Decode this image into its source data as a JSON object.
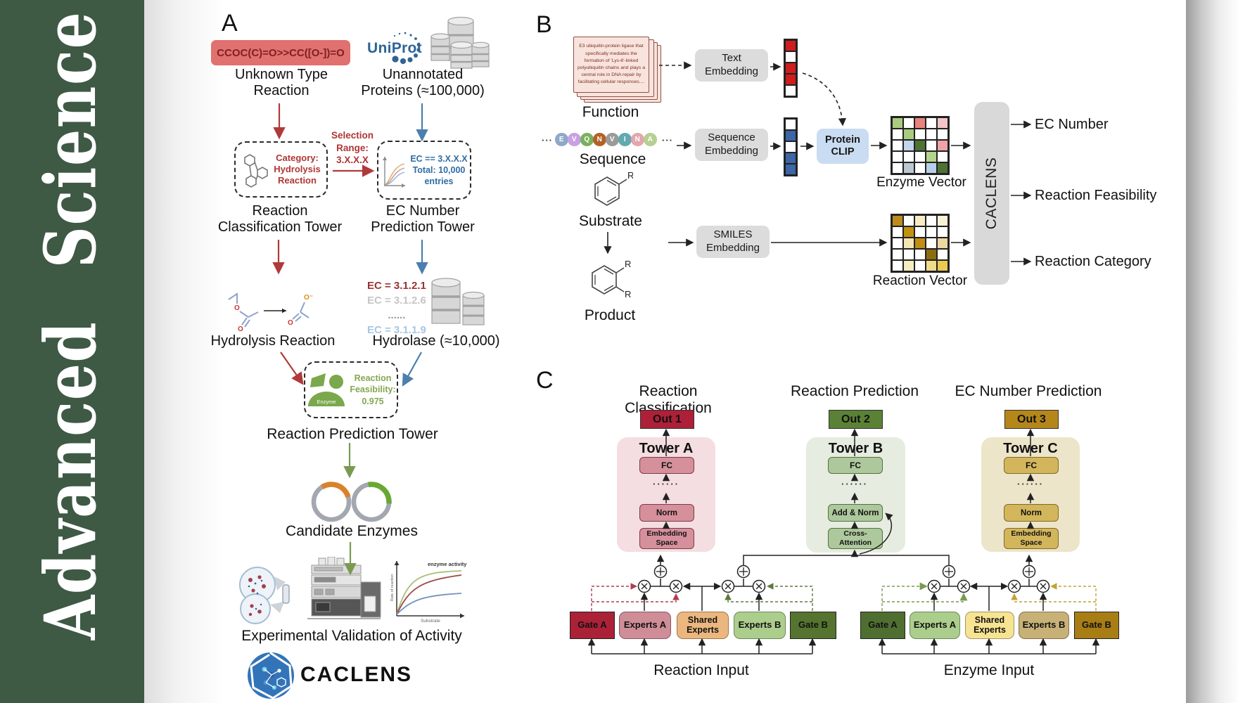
{
  "journal": {
    "name": "Advanced Science",
    "sidebar_color": "#3e5944"
  },
  "panel_a": {
    "label": "A",
    "smiles": "CCOC(C)=O>>CC([O-])=O",
    "unknown_reaction": "Unknown Type\nReaction",
    "uniprot": "UniProt",
    "unannotated": "Unannotated\nProteins (≈100,000)",
    "selection": "Selection\nRange:\n3.X.X.X",
    "category_box": "Category:\nHydrolysis\nReaction",
    "ec_box": "EC == 3.X.X.X\nTotal: 10,000\nentries",
    "classification_tower": "Reaction\nClassification Tower",
    "ec_tower": "EC Number\nPrediction Tower",
    "hydrolysis": "Hydrolysis Reaction",
    "ec_list": [
      "EC = 3.1.2.1",
      "EC = 3.1.2.6",
      "......",
      "EC = 3.1.1.9"
    ],
    "hydrolase": "Hydrolase (≈10,000)",
    "enzyme": "Enzyme",
    "feasibility": "Reaction\nFeasibility:\n0.975",
    "reaction_prediction_tower": "Reaction Prediction Tower",
    "candidate": "Candidate Enzymes",
    "graph": {
      "annotation": "enzyme activity",
      "ylabel": "Rate of reaction",
      "xlabel": "Substrate"
    },
    "validation": "Experimental Validation of Activity",
    "wordmark": "CACLENS",
    "o_atom": "O",
    "o_minus": "O⁻"
  },
  "panel_b": {
    "label": "B",
    "function_card": "E3 ubiquitin-protein ligase that specifically mediates the formation of 'Lys-6'-linked polyubiquitin chains and plays a central role in DNA repair by facilitating cellular responses....",
    "function": "Function",
    "ellipsis": "···",
    "sequence_letters": [
      {
        "ch": "E",
        "color": "#8fa8c8"
      },
      {
        "ch": "V",
        "color": "#c9a0e3"
      },
      {
        "ch": "Q",
        "color": "#7ab05f"
      },
      {
        "ch": "N",
        "color": "#b26227"
      },
      {
        "ch": "V",
        "color": "#9b9b9b"
      },
      {
        "ch": "I",
        "color": "#63a9b2"
      },
      {
        "ch": "N",
        "color": "#e3a6ac"
      },
      {
        "ch": "A",
        "color": "#b7cf92"
      }
    ],
    "sequence": "Sequence",
    "substrate": "Substrate",
    "product": "Product",
    "r": "R",
    "text_embedding": "Text\nEmbedding",
    "sequence_embedding": "Sequence\nEmbedding",
    "smiles_embedding": "SMILES\nEmbedding",
    "protein_clip": "Protein\nCLIP",
    "text_vector": [
      "#cf1d1d",
      "#ffffff",
      "#cf1d1d",
      "#cf1d1d",
      "#ffffff"
    ],
    "sequence_vector": [
      "#ffffff",
      "#3c66a5",
      "#ffffff",
      "#3c66a5",
      "#3c66a5"
    ],
    "enzyme_matrix": [
      [
        "#a9cc7e",
        "#ffffff",
        "#e8837e",
        "#ffffff",
        "#f2c6c9"
      ],
      [
        "#ffffff",
        "#a9cc7e",
        "#ffffff",
        "#ffffff",
        "#ffffff"
      ],
      [
        "#ffffff",
        "#c3d6ee",
        "#4e7234",
        "#ffffff",
        "#f0a3a6"
      ],
      [
        "#ffffff",
        "#ffffff",
        "#ffffff",
        "#b2d48c",
        "#ffffff"
      ],
      [
        "#ffffff",
        "#bcc7d1",
        "#ffffff",
        "#b8cfec",
        "#4e7234"
      ]
    ],
    "reaction_matrix": [
      [
        "#bd8b1c",
        "#ffffff",
        "#f7ecc4",
        "#ffffff",
        "#faf2d8"
      ],
      [
        "#ffffff",
        "#c2920f",
        "#ffffff",
        "#ffffff",
        "#ffffff"
      ],
      [
        "#ffffff",
        "#f3e6b4",
        "#bf8e12",
        "#ffffff",
        "#ecd9a0"
      ],
      [
        "#ffffff",
        "#ffffff",
        "#ffffff",
        "#8a6d10",
        "#ffffff"
      ],
      [
        "#ffffff",
        "#f5ecc0",
        "#ffffff",
        "#f0dc8a",
        "#ecc94f"
      ]
    ],
    "enzyme_vector_label": "Enzyme Vector",
    "reaction_vector_label": "Reaction Vector",
    "caclens": "CACLENS",
    "outputs": [
      "EC Number",
      "Reaction Feasibility",
      "Reaction Category"
    ]
  },
  "panel_c": {
    "label": "C",
    "dots": "······",
    "columns": [
      {
        "title": "Reaction Classification",
        "out": "Out 1",
        "tower": "Tower A",
        "fc": "FC",
        "mid": "Norm",
        "bottom": "Embedding\nSpace"
      },
      {
        "title": "Reaction Prediction",
        "out": "Out 2",
        "tower": "Tower B",
        "fc": "FC",
        "mid": "Add & Norm",
        "bottom": "Cross-\nAttention"
      },
      {
        "title": "EC Number Prediction",
        "out": "Out 3",
        "tower": "Tower C",
        "fc": "FC",
        "mid": "Norm",
        "bottom": "Embedding\nSpace"
      }
    ],
    "reaction_moe": {
      "gate_a": "Gate A",
      "experts_a": "Experts A",
      "shared": "Shared\nExperts",
      "experts_b": "Experts B",
      "gate_b": "Gate B",
      "input": "Reaction Input"
    },
    "enzyme_moe": {
      "gate_a": "Gate A",
      "experts_a": "Experts A",
      "shared": "Shared\nExperts",
      "experts_b": "Experts B",
      "gate_b": "Gate B",
      "input": "Enzyme Input"
    }
  },
  "accent_colors": {
    "out1": "#ad2038",
    "out2": "#5b8136",
    "out3": "#b5871a",
    "gate_red": "#ab2138",
    "gate_green": "#55742f",
    "gate_gold": "#a87d14",
    "smiles_box": "#e0716e"
  }
}
